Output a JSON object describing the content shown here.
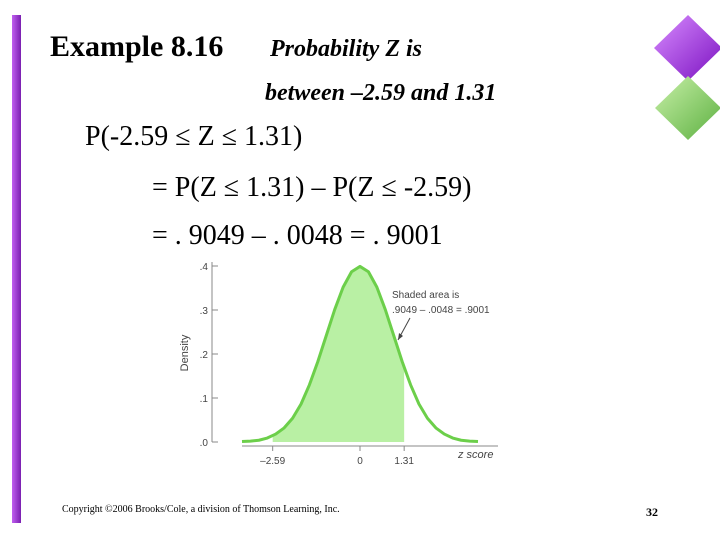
{
  "header": {
    "title": "Example 8.16",
    "subtitle_line1": "Probability Z is",
    "subtitle_line2": "between –2.59 and 1.31"
  },
  "body": {
    "lines": [
      "P(-2.59 ≤ Z ≤ 1.31)",
      "= P(Z ≤ 1.31) – P(Z ≤ -2.59)",
      "= . 9049 – . 0048 = . 9001"
    ]
  },
  "chart_data": {
    "type": "area",
    "x_label": "z score",
    "y_label": "Density",
    "annotation": [
      "Shaded area is",
      ".9049 – .0048 = .9001"
    ],
    "x": [
      -3.5,
      -3.25,
      -3,
      -2.75,
      -2.5,
      -2.25,
      -2,
      -1.75,
      -1.5,
      -1.25,
      -1,
      -0.75,
      -0.5,
      -0.25,
      0,
      0.25,
      0.5,
      0.75,
      1,
      1.25,
      1.5,
      1.75,
      2,
      2.25,
      2.5,
      2.75,
      3,
      3.25,
      3.5
    ],
    "values": [
      0.001,
      0.002,
      0.004,
      0.009,
      0.018,
      0.032,
      0.054,
      0.086,
      0.13,
      0.183,
      0.242,
      0.301,
      0.352,
      0.387,
      0.399,
      0.387,
      0.352,
      0.301,
      0.242,
      0.183,
      0.13,
      0.086,
      0.054,
      0.032,
      0.018,
      0.009,
      0.004,
      0.002,
      0.001
    ],
    "shade": {
      "from": -2.59,
      "to": 1.31
    },
    "color": "#6ccf4a",
    "shade_color": "#b9f0a4",
    "xlim": [
      -3.5,
      3.5
    ],
    "ylim": [
      0,
      0.4
    ],
    "xticks": [
      {
        "value": -2.59,
        "label": "–2.59"
      },
      0,
      1.31
    ],
    "yticks": [
      {
        "value": 0,
        "label": ".0"
      },
      {
        "value": 0.1,
        "label": ".1"
      },
      {
        "value": 0.2,
        "label": ".2"
      },
      {
        "value": 0.3,
        "label": ".3"
      },
      {
        "value": 0.4,
        "label": ".4"
      }
    ]
  },
  "footer": {
    "copyright": "Copyright ©2006 Brooks/Cole, a division of Thomson Learning, Inc.",
    "page": "32"
  }
}
